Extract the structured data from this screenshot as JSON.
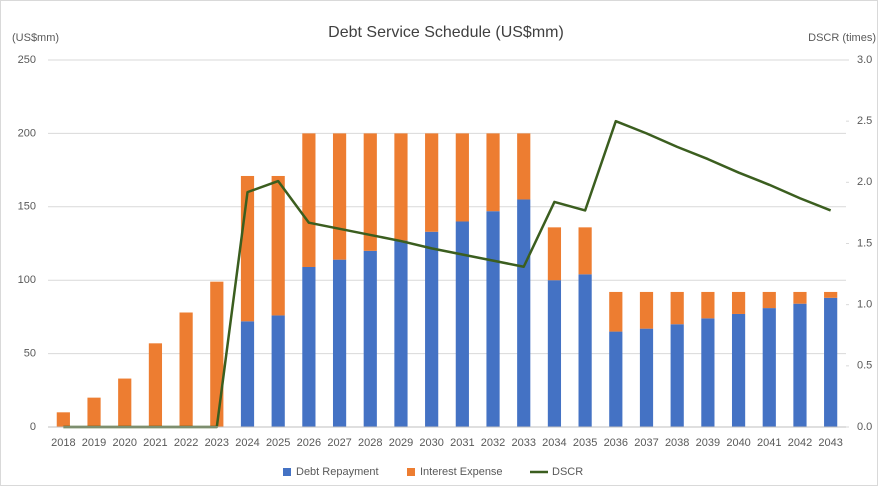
{
  "chart_data": {
    "type": "bar",
    "stacked": true,
    "title": "Debt Service Schedule (US$mm)",
    "y_label": "(US$mm)",
    "y2_label": "DSCR (times)",
    "categories": [
      "2018",
      "2019",
      "2020",
      "2021",
      "2022",
      "2023",
      "2024",
      "2025",
      "2026",
      "2027",
      "2028",
      "2029",
      "2030",
      "2031",
      "2032",
      "2033",
      "2034",
      "2035",
      "2036",
      "2037",
      "2038",
      "2039",
      "2040",
      "2041",
      "2042",
      "2043"
    ],
    "series": [
      {
        "name": "Debt Repayment",
        "type": "bar",
        "color": "#4472c4",
        "values": [
          0,
          0,
          0,
          0,
          0,
          0,
          72,
          76,
          109,
          114,
          120,
          127,
          133,
          140,
          147,
          155,
          100,
          104,
          65,
          67,
          70,
          74,
          77,
          81,
          84,
          88
        ]
      },
      {
        "name": "Interest Expense",
        "type": "bar",
        "color": "#ed7d31",
        "values": [
          10,
          20,
          33,
          57,
          78,
          99,
          99,
          95,
          91,
          86,
          80,
          73,
          67,
          60,
          53,
          45,
          36,
          32,
          27,
          25,
          22,
          18,
          15,
          11,
          8,
          4
        ]
      },
      {
        "name": "DSCR",
        "type": "line",
        "axis": "y2",
        "color": "#3b5e1f",
        "values": [
          0,
          0,
          0,
          0,
          0,
          0,
          1.92,
          2.01,
          1.67,
          1.62,
          1.57,
          1.52,
          1.46,
          1.41,
          1.36,
          1.31,
          1.84,
          1.77,
          2.5,
          2.4,
          2.29,
          2.19,
          2.08,
          1.98,
          1.87,
          1.77
        ]
      }
    ],
    "ylim": [
      0,
      250
    ],
    "yticks": [
      0,
      50,
      100,
      150,
      200,
      250
    ],
    "y2lim": [
      0,
      3
    ],
    "y2ticks": [
      {
        "value": 0,
        "label": "0.0"
      },
      0.5,
      {
        "value": 1,
        "label": "1.0"
      },
      1.5,
      {
        "value": 2,
        "label": "2.0"
      },
      2.5,
      {
        "value": 3,
        "label": "3.0"
      }
    ],
    "grid": true,
    "legend": "bottom"
  }
}
